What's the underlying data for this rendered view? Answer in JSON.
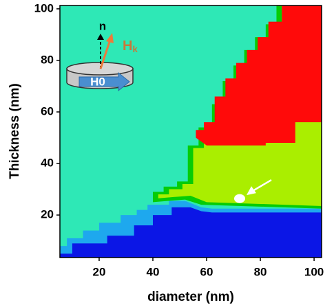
{
  "chart_data": {
    "type": "phase-diagram",
    "x_label": "diameter (nm)",
    "y_label": "Thickness (nm)",
    "xlim": [
      5.4,
      102.8
    ],
    "ylim": [
      3.5,
      101.3
    ],
    "xticks": [
      20,
      40,
      60,
      80,
      100
    ],
    "yticks": [
      20,
      40,
      60,
      80,
      100
    ],
    "background": "#2ee8b6",
    "regions": [
      {
        "color": "#1ea8ee",
        "x": [
          5.4,
          5.4,
          8,
          8,
          14,
          14,
          20,
          20,
          28,
          28,
          34,
          34,
          38,
          38,
          46,
          46,
          52,
          58,
          62,
          102.8,
          102.8
        ],
        "y": [
          3.5,
          8,
          8,
          11,
          11,
          14,
          14,
          17,
          17,
          20,
          20,
          22,
          22,
          24,
          24,
          25.5,
          25.5,
          23,
          22.5,
          22.5,
          3.5
        ]
      },
      {
        "color": "#0b16e6",
        "x": [
          5.4,
          5.4,
          10,
          10,
          23,
          23,
          33,
          33,
          40,
          40,
          47,
          47,
          54,
          58,
          62,
          102.8,
          102.8
        ],
        "y": [
          3.5,
          5,
          5,
          9,
          9,
          12,
          12,
          16,
          16,
          20,
          20,
          23,
          23,
          21.5,
          21,
          21,
          3.5
        ]
      },
      {
        "color": "#06cc06",
        "x": [
          40,
          40,
          44,
          44,
          49,
          49,
          53,
          53,
          57,
          57,
          62,
          62,
          66,
          66,
          70,
          70,
          74,
          74,
          78,
          78,
          82,
          82,
          86,
          86,
          102.8,
          102.8,
          58,
          52
        ],
        "y": [
          25,
          29,
          29,
          31,
          31,
          33,
          33,
          47,
          47,
          54,
          54,
          63,
          63,
          72,
          72,
          78,
          78,
          84,
          84,
          89,
          89,
          94,
          94,
          101.3,
          101.3,
          22.5,
          24,
          26
        ]
      },
      {
        "color": "#aaee00",
        "x": [
          42,
          42,
          46,
          46,
          51,
          51,
          55,
          55,
          59,
          59,
          64,
          64,
          68,
          68,
          72,
          72,
          76,
          76,
          80,
          80,
          84,
          84,
          88,
          88,
          102.8,
          102.8,
          60,
          54
        ],
        "y": [
          26.5,
          28,
          28,
          30,
          30,
          32,
          32,
          46,
          46,
          53,
          53,
          62,
          62,
          71,
          71,
          77,
          77,
          83,
          83,
          88,
          88,
          93,
          93,
          101.3,
          101.3,
          23.5,
          25,
          27.5
        ]
      },
      {
        "color": "#ff0a0a",
        "x": [
          56,
          56,
          59,
          59,
          63,
          63,
          67,
          67,
          71,
          71,
          75,
          75,
          79,
          79,
          83,
          83,
          88,
          88,
          102.8,
          102.8,
          93,
          93,
          82,
          82,
          60
        ],
        "y": [
          50,
          53,
          53,
          56,
          56,
          66,
          66,
          73,
          73,
          79,
          79,
          84,
          84,
          89,
          89,
          95,
          95,
          101.3,
          101.3,
          56,
          56,
          48,
          48,
          47,
          47
        ]
      }
    ],
    "marker": {
      "x": 72.3,
      "y": 26.4,
      "color": "#ffffff"
    },
    "inset": {
      "normal_label": "n",
      "field_label": "H",
      "field_subscript": "k",
      "bar_label": "H0"
    }
  }
}
